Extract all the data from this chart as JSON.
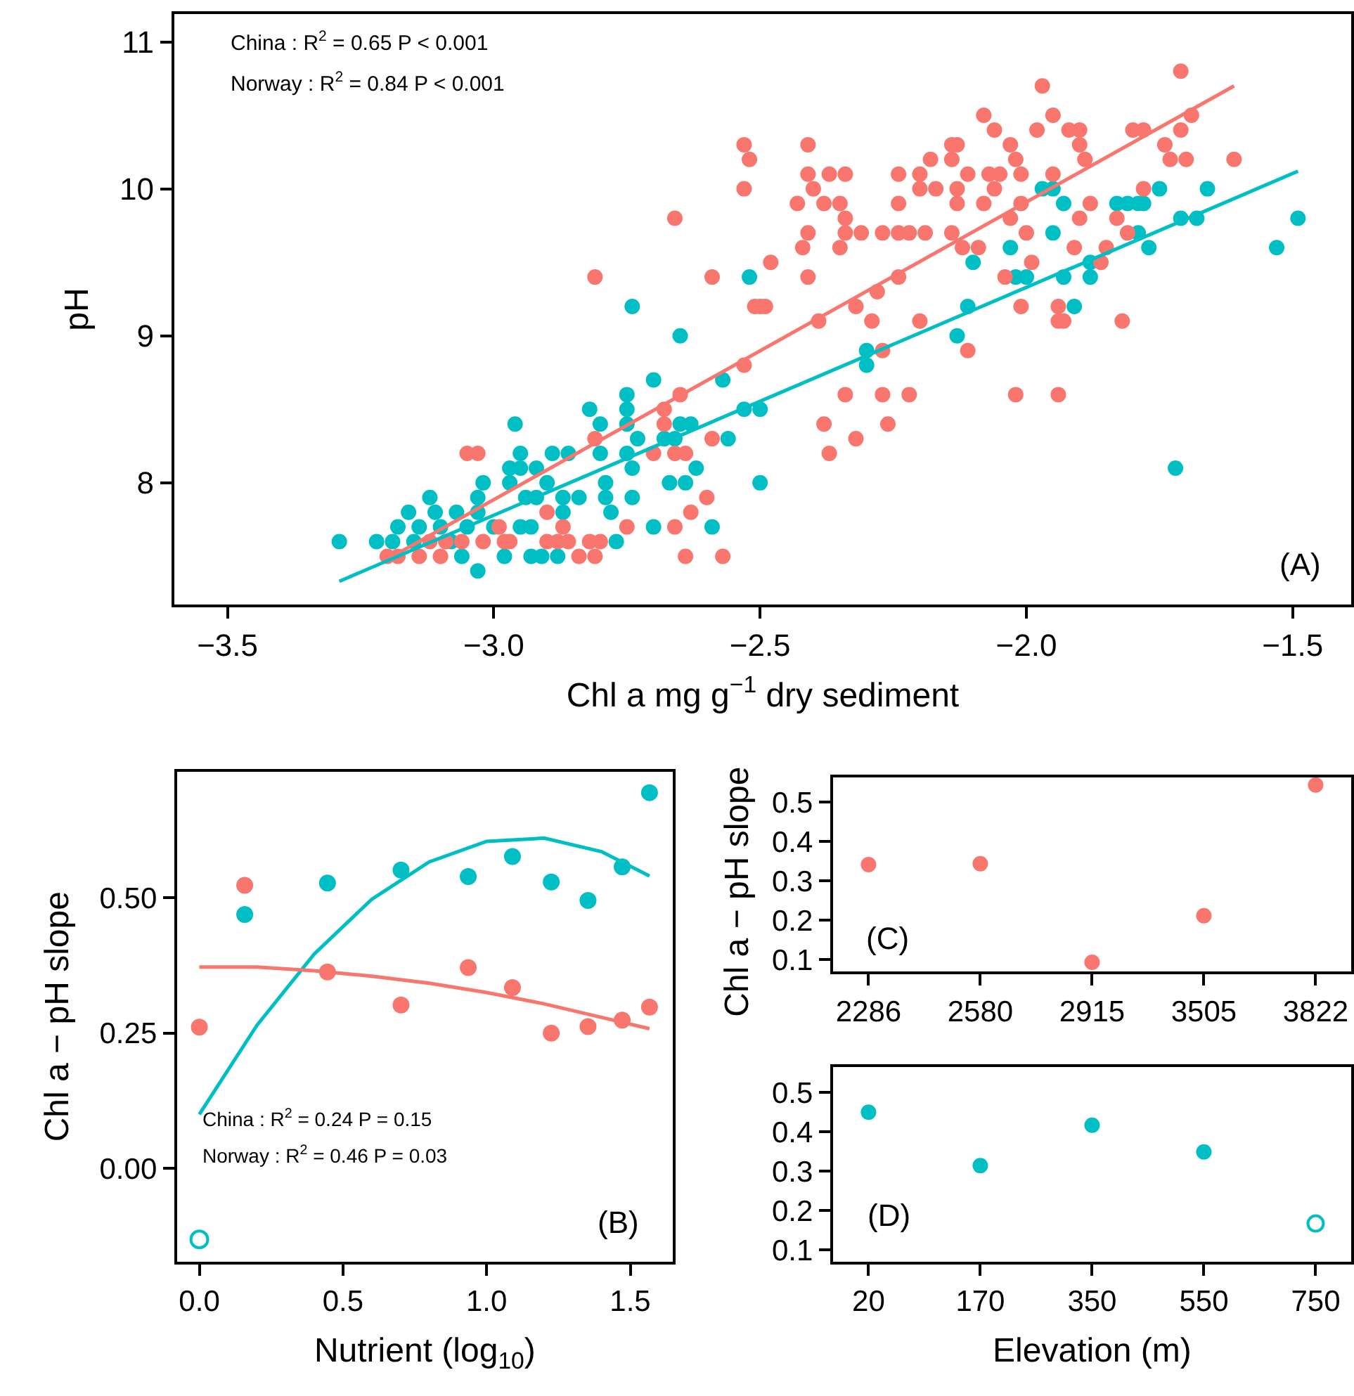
{
  "chart_data": [
    {
      "type": "scatter",
      "xlabel": "Chl a mg g$^{−1}$ dry sediment",
      "ylabel": "pH",
      "marker": "circle",
      "xlim": [
        -3.6,
        -1.39
      ],
      "ylim": [
        7.17,
        11.19
      ],
      "xticks": [
        {
          "value": -3.5,
          "label": "−3.5"
        },
        {
          "value": -3.0,
          "label": "−3.0"
        },
        {
          "value": -2.5,
          "label": "−2.5"
        },
        {
          "value": -2.0,
          "label": "−2.0"
        },
        {
          "value": -1.5,
          "label": "−1.5"
        }
      ],
      "yticks": [
        8,
        9,
        10,
        11
      ],
      "annotations": [
        "China : R$^{2}$ = 0.65 P < 0.001",
        "Norway : R$^{2}$ = 0.84 P < 0.001",
        "(A)"
      ],
      "series": [
        {
          "color": "#00bfc4",
          "x": [
            -3.29,
            -3.22,
            -3.19,
            -3.18,
            -3.16,
            -3.15,
            -3.14,
            -3.12,
            -3.11,
            -3.1,
            -3.08,
            -3.07,
            -3.06,
            -3.05,
            -3.03,
            -3.03,
            -3.02,
            -3.03,
            -3.0,
            -2.98,
            -2.97,
            -2.97,
            -2.96,
            -2.95,
            -2.95,
            -2.95,
            -2.94,
            -2.93,
            -2.93,
            -2.92,
            -2.91,
            -2.92,
            -2.9,
            -2.89,
            -2.88,
            -2.87,
            -2.87,
            -2.86,
            -2.84,
            -2.82,
            -2.8,
            -2.8,
            -2.79,
            -2.79,
            -2.78,
            -2.77,
            -2.75,
            -2.75,
            -2.75,
            -2.75,
            -2.74,
            -2.74,
            -2.74,
            -2.73,
            -2.7,
            -2.7,
            -2.68,
            -2.67,
            -2.66,
            -2.65,
            -2.65,
            -2.64,
            -2.63,
            -2.62,
            -2.59,
            -2.57,
            -2.56,
            -2.53,
            -2.52,
            -2.5,
            -2.5,
            -2.3,
            -2.3,
            -2.13,
            -2.11,
            -2.1,
            -2.03,
            -2.02,
            -2.0,
            -1.97,
            -1.95,
            -1.95,
            -1.93,
            -1.93,
            -1.91,
            -1.88,
            -1.88,
            -1.83,
            -1.81,
            -1.79,
            -1.78,
            -1.79,
            -1.77,
            -1.75,
            -1.72,
            -1.71,
            -1.68,
            -1.66,
            -1.53,
            -1.49
          ],
          "values": [
            7.6,
            7.6,
            7.6,
            7.7,
            7.8,
            7.6,
            7.7,
            7.9,
            7.8,
            7.7,
            7.6,
            7.8,
            7.5,
            7.7,
            7.8,
            7.4,
            8.0,
            7.9,
            7.7,
            7.5,
            8.1,
            8.0,
            8.4,
            8.2,
            8.1,
            7.7,
            7.9,
            7.7,
            7.5,
            8.1,
            7.5,
            7.9,
            8.0,
            8.2,
            7.5,
            7.9,
            7.8,
            8.2,
            7.9,
            8.5,
            8.4,
            8.2,
            8.0,
            7.9,
            7.8,
            7.6,
            8.6,
            8.5,
            8.4,
            8.2,
            9.2,
            8.1,
            7.9,
            8.3,
            8.7,
            7.7,
            8.3,
            8.0,
            8.3,
            8.4,
            9.0,
            8.0,
            8.4,
            8.1,
            7.7,
            8.7,
            8.3,
            8.5,
            9.4,
            8.0,
            8.5,
            8.9,
            8.8,
            9.0,
            9.2,
            9.5,
            9.6,
            9.4,
            9.4,
            10.0,
            10.0,
            9.7,
            9.9,
            9.4,
            9.2,
            9.4,
            9.5,
            9.9,
            9.9,
            9.9,
            9.9,
            9.7,
            9.6,
            10.0,
            8.1,
            9.8,
            9.8,
            10.0,
            9.6,
            9.8
          ]
        },
        {
          "color": "#f8766d",
          "x": [
            -3.2,
            -3.18,
            -3.14,
            -3.12,
            -3.1,
            -3.09,
            -3.06,
            -3.05,
            -3.03,
            -3.02,
            -2.99,
            -2.98,
            -2.97,
            -2.9,
            -2.9,
            -2.88,
            -2.87,
            -2.86,
            -2.84,
            -2.82,
            -2.81,
            -2.81,
            -2.81,
            -2.8,
            -2.75,
            -2.7,
            -2.68,
            -2.68,
            -2.66,
            -2.66,
            -2.66,
            -2.65,
            -2.64,
            -2.64,
            -2.63,
            -2.6,
            -2.59,
            -2.59,
            -2.57,
            -2.53,
            -2.53,
            -2.52,
            -2.53,
            -2.51,
            -2.5,
            -2.49,
            -2.48,
            -2.43,
            -2.42,
            -2.41,
            -2.41,
            -2.41,
            -2.41,
            -2.4,
            -2.39,
            -2.38,
            -2.38,
            -2.37,
            -2.37,
            -2.35,
            -2.35,
            -2.34,
            -2.34,
            -2.34,
            -2.34,
            -2.32,
            -2.32,
            -2.31,
            -2.29,
            -2.28,
            -2.27,
            -2.27,
            -2.27,
            -2.26,
            -2.24,
            -2.24,
            -2.24,
            -2.24,
            -2.22,
            -2.22,
            -2.2,
            -2.2,
            -2.2,
            -2.19,
            -2.18,
            -2.17,
            -2.14,
            -2.14,
            -2.14,
            -2.13,
            -2.13,
            -2.13,
            -2.12,
            -2.11,
            -2.11,
            -2.09,
            -2.08,
            -2.08,
            -2.07,
            -2.06,
            -2.06,
            -2.05,
            -2.04,
            -2.03,
            -2.03,
            -2.02,
            -2.02,
            -2.01,
            -2.01,
            -2.01,
            -2.0,
            -1.99,
            -1.98,
            -1.97,
            -1.95,
            -1.95,
            -1.94,
            -1.94,
            -1.94,
            -1.93,
            -1.92,
            -1.91,
            -1.9,
            -1.9,
            -1.9,
            -1.89,
            -1.88,
            -1.86,
            -1.85,
            -1.83,
            -1.82,
            -1.81,
            -1.8,
            -1.78,
            -1.78,
            -1.74,
            -1.73,
            -1.71,
            -1.71,
            -1.7,
            -1.69,
            -1.61
          ],
          "values": [
            7.5,
            7.5,
            7.5,
            7.6,
            7.5,
            7.6,
            7.6,
            8.2,
            8.2,
            7.6,
            7.7,
            7.6,
            7.6,
            7.6,
            7.8,
            7.6,
            7.7,
            7.6,
            7.5,
            7.6,
            7.5,
            9.4,
            8.3,
            7.6,
            7.7,
            8.2,
            8.4,
            8.5,
            7.7,
            8.2,
            9.8,
            8.6,
            7.5,
            8.2,
            7.8,
            7.9,
            8.3,
            9.4,
            7.5,
            8.8,
            10.3,
            10.2,
            10.0,
            9.2,
            9.2,
            9.2,
            9.5,
            9.9,
            9.6,
            10.3,
            10.1,
            9.4,
            9.7,
            10.0,
            9.1,
            9.9,
            8.4,
            8.2,
            10.1,
            9.6,
            9.9,
            9.7,
            10.1,
            9.8,
            8.6,
            9.2,
            8.3,
            9.7,
            9.1,
            9.3,
            9.7,
            8.9,
            8.6,
            8.4,
            9.9,
            9.4,
            9.7,
            10.1,
            8.6,
            9.7,
            10.1,
            10.0,
            9.1,
            9.7,
            10.2,
            10.0,
            10.2,
            10.3,
            9.7,
            10.0,
            9.9,
            10.3,
            9.6,
            10.1,
            8.9,
            9.6,
            9.9,
            10.5,
            10.1,
            10.0,
            10.4,
            10.1,
            9.4,
            9.8,
            10.3,
            10.2,
            8.6,
            10.1,
            9.9,
            9.2,
            9.7,
            9.5,
            10.4,
            10.7,
            10.5,
            10.1,
            9.2,
            9.1,
            8.6,
            9.1,
            10.4,
            9.6,
            10.4,
            10.3,
            9.8,
            10.2,
            9.9,
            9.5,
            9.6,
            9.8,
            9.1,
            9.7,
            10.4,
            10.4,
            10.0,
            10.3,
            10.2,
            10.8,
            10.4,
            10.2,
            10.5,
            10.2
          ]
        },
        {
          "type": "line",
          "marker": "none",
          "color": "#f8766d",
          "x": [
            -3.2,
            -1.61
          ],
          "values": [
            7.48,
            10.7
          ]
        },
        {
          "type": "line",
          "marker": "none",
          "color": "#00bfc4",
          "x": [
            -3.29,
            -1.49
          ],
          "values": [
            7.33,
            10.12
          ]
        }
      ]
    },
    {
      "type": "scatter",
      "xlabel": "Nutrient (log$_{10}$)",
      "ylabel": "Chl a − pH slope",
      "marker": "circle",
      "xlim": [
        -0.078,
        1.648
      ],
      "ylim": [
        -0.172,
        0.733
      ],
      "xticks": [
        {
          "value": 0,
          "label": "0.0"
        },
        {
          "value": 0.5,
          "label": "0.5"
        },
        {
          "value": 1.0,
          "label": "1.0"
        },
        {
          "value": 1.5,
          "label": "1.5"
        }
      ],
      "yticks": [
        {
          "value": 0,
          "label": "0.00"
        },
        {
          "value": 0.25,
          "label": "0.25"
        },
        {
          "value": 0.5,
          "label": "0.50"
        }
      ],
      "annotations": [
        "China : R$^{2}$ = 0.24 P = 0.15",
        "Norway : R$^{2}$ = 0.46 P = 0.03",
        "(B)"
      ],
      "series": [
        {
          "color": "#f8766d",
          "x": [
            0,
            0.158,
            0.446,
            0.702,
            0.936,
            1.09,
            1.225,
            1.353,
            1.472,
            1.567
          ],
          "values": [
            0.261,
            0.523,
            0.363,
            0.302,
            0.371,
            0.334,
            0.25,
            0.262,
            0.274,
            0.298
          ]
        },
        {
          "color": "#00bfc4",
          "x": [
            0.158,
            0.446,
            0.702,
            0.936,
            1.09,
            1.225,
            1.353,
            1.472,
            1.567
          ],
          "values": [
            0.469,
            0.527,
            0.551,
            0.539,
            0.576,
            0.529,
            0.495,
            0.557,
            0.694
          ]
        },
        {
          "color": "#00bfc4",
          "marker": "circle-open",
          "x": [
            0
          ],
          "values": [
            -0.131
          ]
        },
        {
          "type": "line",
          "marker": "none",
          "color": "#00bfc4",
          "x": [
            0,
            0.2,
            0.4,
            0.6,
            0.8,
            1.0,
            1.2,
            1.4,
            1.567
          ],
          "values": [
            0.1,
            0.264,
            0.396,
            0.497,
            0.566,
            0.604,
            0.61,
            0.585,
            0.54
          ]
        },
        {
          "type": "line",
          "marker": "none",
          "color": "#f8766d",
          "x": [
            0,
            0.2,
            0.4,
            0.6,
            0.8,
            1.0,
            1.2,
            1.4,
            1.567
          ],
          "values": [
            0.372,
            0.372,
            0.365,
            0.355,
            0.342,
            0.325,
            0.304,
            0.279,
            0.258
          ]
        }
      ]
    },
    {
      "type": "scatter",
      "ylabel": "Chl a − pH slope",
      "marker": "circle",
      "categories": [
        "2286",
        "2580",
        "2915",
        "3505",
        "3822"
      ],
      "ylim": [
        0.069,
        0.563
      ],
      "yticks": [
        0.1,
        0.2,
        0.3,
        0.4,
        0.5
      ],
      "annotations": [
        "(C)"
      ],
      "series": [
        {
          "color": "#f8766d",
          "values": [
            0.341,
            0.343,
            0.093,
            0.211,
            0.543
          ]
        }
      ]
    },
    {
      "type": "scatter",
      "xlabel": "Elevation (m)",
      "marker": "circle",
      "categories": [
        "20",
        "170",
        "350",
        "550",
        "750"
      ],
      "ylim": [
        0.07,
        0.565
      ],
      "yticks": [
        0.1,
        0.2,
        0.3,
        0.4,
        0.5
      ],
      "annotations": [
        "(D)"
      ],
      "series": [
        {
          "color": "#00bfc4",
          "values": [
            0.45,
            0.314,
            0.417,
            0.349,
            null
          ]
        },
        {
          "color": "#00bfc4",
          "marker": "circle-open",
          "values": [
            null,
            null,
            null,
            null,
            0.167
          ]
        }
      ]
    }
  ]
}
